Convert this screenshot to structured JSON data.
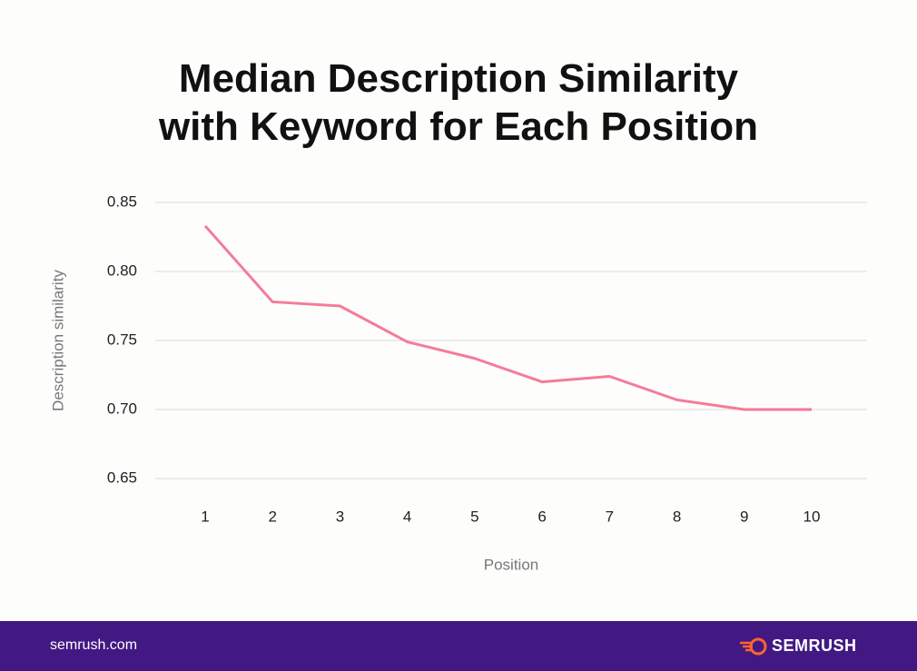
{
  "chart_data": {
    "type": "line",
    "title": "Median Description Similarity with Keyword for Each Position",
    "x_label": "Position",
    "y_label": "Description similarity",
    "categories": [
      "1",
      "2",
      "3",
      "4",
      "5",
      "6",
      "7",
      "8",
      "9",
      "10"
    ],
    "series": [
      {
        "name": "Median description similarity",
        "color": "#f47c96",
        "values": [
          0.833,
          0.778,
          0.775,
          0.749,
          0.737,
          0.72,
          0.724,
          0.707,
          0.7,
          0.7
        ]
      }
    ],
    "ylim": [
      0.65,
      0.85
    ],
    "yticks": [
      0.65,
      {
        "value": 0.7,
        "label": "0.70"
      },
      0.75,
      {
        "value": 0.8,
        "label": "0.80"
      },
      0.85
    ],
    "grid": true
  },
  "footer": {
    "site": "semrush.com",
    "brand": "SEMRUSH"
  }
}
